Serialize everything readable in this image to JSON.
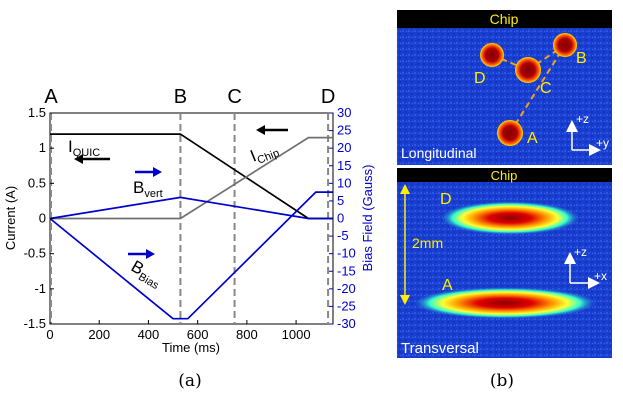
{
  "chart_data": {
    "type": "line",
    "xlabel": "Time (ms)",
    "ylabel": "Current (A)",
    "y2label": "Bias Field (Gauss)",
    "xlim": [
      0,
      1150
    ],
    "ylim": [
      -1.5,
      1.5
    ],
    "y2lim": [
      -30,
      30
    ],
    "x_ticks": [
      "0",
      "200",
      "400",
      "600",
      "800",
      "1000"
    ],
    "y_ticks": [
      "-1.5",
      "-1",
      "-0.5",
      "0",
      "0.5",
      "1",
      "1.5"
    ],
    "y2_ticks": [
      "-30",
      "-25",
      "-20",
      "-15",
      "-10",
      "-5",
      "0",
      "5",
      "10",
      "15",
      "20",
      "25",
      "30"
    ],
    "markers": [
      {
        "label": "A",
        "x": 0
      },
      {
        "label": "B",
        "x": 530
      },
      {
        "label": "C",
        "x": 750
      },
      {
        "label": "D",
        "x": 1130
      }
    ],
    "series": [
      {
        "name": "I_QUIC",
        "color": "#000000",
        "axis": "left",
        "x": [
          0,
          530,
          1050,
          1150
        ],
        "y": [
          1.2,
          1.2,
          0,
          0
        ]
      },
      {
        "name": "I_Chip",
        "color": "#707070",
        "axis": "left",
        "x": [
          0,
          530,
          1050,
          1150
        ],
        "y": [
          0,
          0,
          1.15,
          1.15
        ]
      },
      {
        "name": "B_vert",
        "color": "#0000cc",
        "axis": "right",
        "x": [
          0,
          530,
          1050,
          1150
        ],
        "y": [
          0,
          6,
          0,
          0
        ]
      },
      {
        "name": "B_Bias",
        "color": "#0000cc",
        "axis": "right",
        "x": [
          0,
          500,
          560,
          1080,
          1150
        ],
        "y": [
          0,
          -28.5,
          -28.5,
          7.5,
          7.5
        ]
      }
    ],
    "labels": {
      "iquic_main": "I",
      "iquic_sub": "QUIC",
      "ichip_main": "I",
      "ichip_sub": "Chip",
      "bvert_main": "B",
      "bvert_sub": "vert",
      "bbias_main": "B",
      "bbias_sub": "Bias"
    }
  },
  "panel_b": {
    "top_header": "Chip",
    "top_points": [
      "A",
      "B",
      "C",
      "D"
    ],
    "top_view": "Longitudinal",
    "top_axes": [
      "+z",
      "+y"
    ],
    "bottom_header": "Chip",
    "bottom_points": [
      "D",
      "A"
    ],
    "bottom_scale": "2mm",
    "bottom_view": "Transversal",
    "bottom_axes": [
      "+z",
      "+x"
    ]
  },
  "captions": {
    "a": "(a)",
    "b": "(b)"
  }
}
